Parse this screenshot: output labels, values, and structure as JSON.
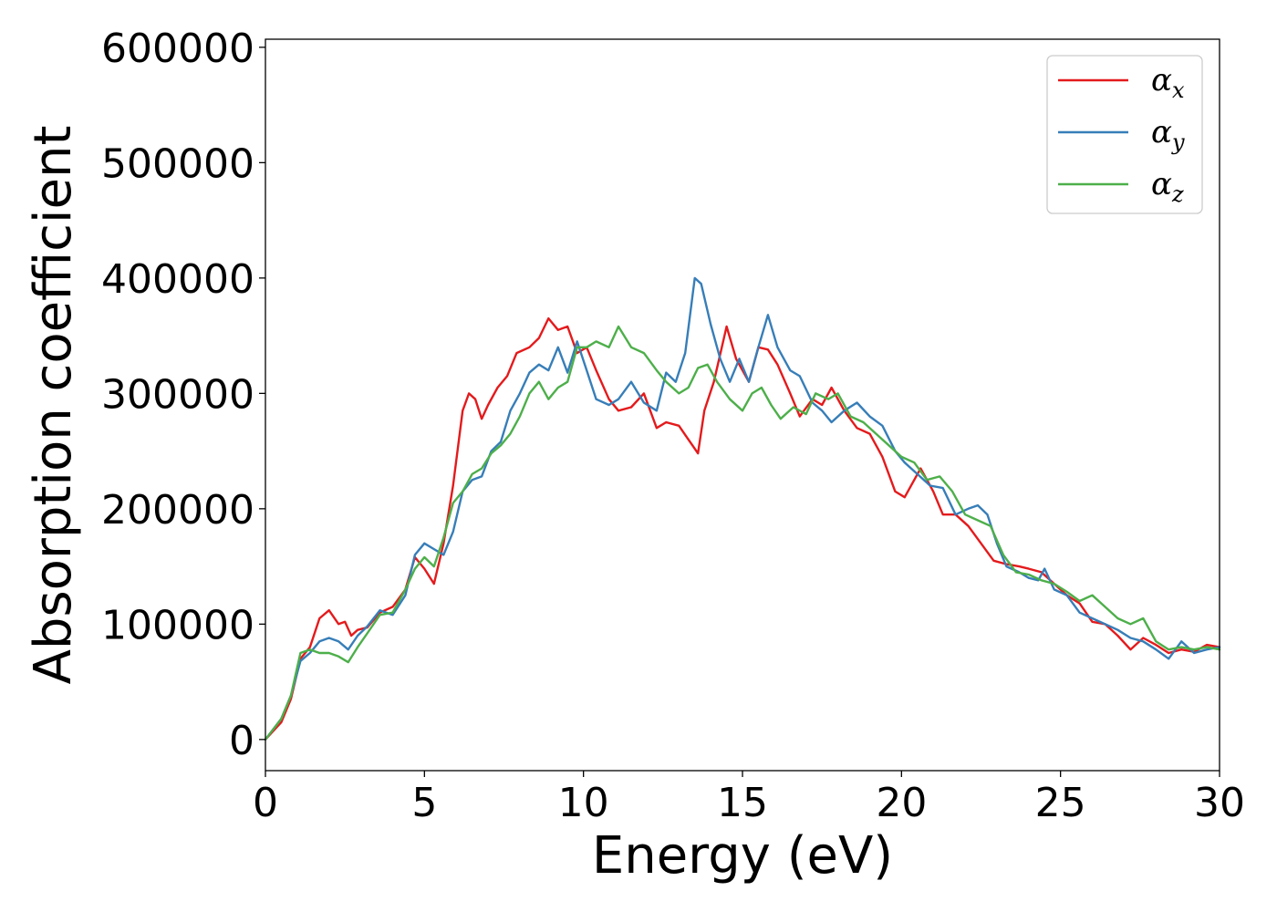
{
  "chart_data": {
    "type": "line",
    "xlabel": "Energy (eV)",
    "ylabel": "Absorption coefficient",
    "xlim": [
      0,
      30
    ],
    "ylim": [
      -27000,
      607000
    ],
    "xticks": [
      0,
      5,
      10,
      15,
      20,
      25,
      30
    ],
    "xtick_labels": [
      "0",
      "5",
      "10",
      "15",
      "20",
      "25",
      "30"
    ],
    "yticks": [
      0,
      100000,
      200000,
      300000,
      400000,
      500000,
      600000
    ],
    "ytick_labels": [
      "0",
      "100000",
      "200000",
      "300000",
      "400000",
      "500000",
      "600000"
    ],
    "grid": false,
    "legend_position": "top-right",
    "series": [
      {
        "name": "αx",
        "legend_base": "α",
        "legend_sub": "x",
        "color": "#e41a1c",
        "x": [
          0,
          0.5,
          0.8,
          1.1,
          1.4,
          1.7,
          2.0,
          2.3,
          2.5,
          2.7,
          2.9,
          3.2,
          3.6,
          4.0,
          4.4,
          4.7,
          5.0,
          5.3,
          5.6,
          5.9,
          6.2,
          6.4,
          6.6,
          6.8,
          7.0,
          7.3,
          7.6,
          7.9,
          8.3,
          8.6,
          8.9,
          9.2,
          9.5,
          9.8,
          10.1,
          10.4,
          10.8,
          11.1,
          11.5,
          11.9,
          12.3,
          12.6,
          13.0,
          13.3,
          13.6,
          13.8,
          14.1,
          14.5,
          14.8,
          15.2,
          15.5,
          15.8,
          16.1,
          16.5,
          16.8,
          17.2,
          17.5,
          17.8,
          18.2,
          18.6,
          19.0,
          19.4,
          19.8,
          20.1,
          20.6,
          21.0,
          21.3,
          21.7,
          22.1,
          22.5,
          22.9,
          23.3,
          23.7,
          24.0,
          24.4,
          24.8,
          25.2,
          25.6,
          26.0,
          26.4,
          26.8,
          27.2,
          27.6,
          28.0,
          28.4,
          28.8,
          29.2,
          29.6,
          30.0
        ],
        "values": [
          0,
          15000,
          35000,
          70000,
          80000,
          105000,
          112000,
          100000,
          102000,
          90000,
          95000,
          97000,
          110000,
          115000,
          130000,
          158000,
          148000,
          135000,
          170000,
          220000,
          285000,
          300000,
          295000,
          278000,
          290000,
          305000,
          315000,
          335000,
          340000,
          348000,
          365000,
          355000,
          358000,
          335000,
          340000,
          320000,
          295000,
          285000,
          288000,
          300000,
          270000,
          275000,
          272000,
          260000,
          248000,
          285000,
          310000,
          358000,
          330000,
          310000,
          340000,
          338000,
          325000,
          300000,
          280000,
          295000,
          290000,
          305000,
          285000,
          270000,
          265000,
          245000,
          215000,
          210000,
          235000,
          215000,
          195000,
          195000,
          185000,
          170000,
          155000,
          152000,
          150000,
          148000,
          145000,
          135000,
          125000,
          118000,
          102000,
          100000,
          90000,
          78000,
          88000,
          82000,
          75000,
          78000,
          76000,
          82000,
          80000
        ]
      },
      {
        "name": "αy",
        "legend_base": "α",
        "legend_sub": "y",
        "color": "#377eb8",
        "x": [
          0,
          0.5,
          0.8,
          1.1,
          1.4,
          1.7,
          2.0,
          2.3,
          2.6,
          2.9,
          3.2,
          3.6,
          4.0,
          4.4,
          4.7,
          5.0,
          5.3,
          5.6,
          5.9,
          6.2,
          6.5,
          6.8,
          7.1,
          7.4,
          7.7,
          8.0,
          8.3,
          8.6,
          8.9,
          9.2,
          9.5,
          9.8,
          10.1,
          10.4,
          10.8,
          11.1,
          11.5,
          11.9,
          12.3,
          12.6,
          12.9,
          13.2,
          13.5,
          13.7,
          14.0,
          14.3,
          14.6,
          14.9,
          15.2,
          15.5,
          15.8,
          16.1,
          16.5,
          16.8,
          17.2,
          17.5,
          17.8,
          18.2,
          18.6,
          19.0,
          19.4,
          19.8,
          20.1,
          20.5,
          20.9,
          21.3,
          21.7,
          22.1,
          22.4,
          22.7,
          23.0,
          23.3,
          23.7,
          24.0,
          24.3,
          24.5,
          24.8,
          25.2,
          25.6,
          26.0,
          26.4,
          26.8,
          27.2,
          27.6,
          28.0,
          28.4,
          28.8,
          29.2,
          29.6,
          30.0
        ],
        "values": [
          0,
          18000,
          38000,
          68000,
          75000,
          85000,
          88000,
          85000,
          78000,
          90000,
          98000,
          112000,
          108000,
          125000,
          160000,
          170000,
          165000,
          160000,
          180000,
          215000,
          225000,
          228000,
          250000,
          258000,
          285000,
          300000,
          318000,
          325000,
          320000,
          340000,
          318000,
          345000,
          320000,
          295000,
          290000,
          295000,
          310000,
          292000,
          285000,
          318000,
          310000,
          335000,
          400000,
          395000,
          360000,
          330000,
          310000,
          330000,
          310000,
          340000,
          368000,
          340000,
          320000,
          315000,
          292000,
          285000,
          275000,
          285000,
          292000,
          280000,
          272000,
          250000,
          240000,
          230000,
          220000,
          218000,
          195000,
          200000,
          203000,
          195000,
          170000,
          150000,
          145000,
          140000,
          138000,
          148000,
          130000,
          125000,
          110000,
          105000,
          100000,
          95000,
          88000,
          85000,
          78000,
          70000,
          85000,
          75000,
          78000,
          80000
        ]
      },
      {
        "name": "αz",
        "legend_base": "α",
        "legend_sub": "z",
        "color": "#4daf4a",
        "x": [
          0,
          0.5,
          0.8,
          1.1,
          1.4,
          1.7,
          2.0,
          2.3,
          2.6,
          2.9,
          3.2,
          3.6,
          4.0,
          4.4,
          4.7,
          5.0,
          5.3,
          5.6,
          5.9,
          6.2,
          6.5,
          6.8,
          7.1,
          7.4,
          7.7,
          8.0,
          8.3,
          8.6,
          8.9,
          9.2,
          9.5,
          9.8,
          10.1,
          10.4,
          10.8,
          11.1,
          11.5,
          11.9,
          12.3,
          12.6,
          13.0,
          13.3,
          13.6,
          13.9,
          14.2,
          14.6,
          15.0,
          15.3,
          15.6,
          15.9,
          16.2,
          16.6,
          17.0,
          17.3,
          17.7,
          18.0,
          18.4,
          18.8,
          19.2,
          19.6,
          20.0,
          20.4,
          20.8,
          21.2,
          21.6,
          22.0,
          22.4,
          22.8,
          23.2,
          23.6,
          24.0,
          24.4,
          24.8,
          25.2,
          25.6,
          26.0,
          26.4,
          26.8,
          27.2,
          27.6,
          28.0,
          28.4,
          28.8,
          29.2,
          29.6,
          30.0
        ],
        "values": [
          0,
          18000,
          38000,
          75000,
          78000,
          75000,
          75000,
          72000,
          67000,
          80000,
          92000,
          108000,
          110000,
          130000,
          148000,
          158000,
          150000,
          175000,
          205000,
          215000,
          230000,
          235000,
          248000,
          255000,
          265000,
          280000,
          300000,
          310000,
          295000,
          305000,
          310000,
          340000,
          340000,
          345000,
          340000,
          358000,
          340000,
          335000,
          320000,
          310000,
          300000,
          305000,
          322000,
          325000,
          310000,
          295000,
          285000,
          300000,
          305000,
          290000,
          278000,
          288000,
          282000,
          300000,
          295000,
          300000,
          280000,
          275000,
          265000,
          255000,
          245000,
          240000,
          225000,
          228000,
          215000,
          195000,
          190000,
          185000,
          160000,
          145000,
          143000,
          138000,
          135000,
          128000,
          120000,
          125000,
          115000,
          105000,
          100000,
          105000,
          85000,
          78000,
          80000,
          78000,
          80000,
          78000
        ]
      }
    ]
  }
}
